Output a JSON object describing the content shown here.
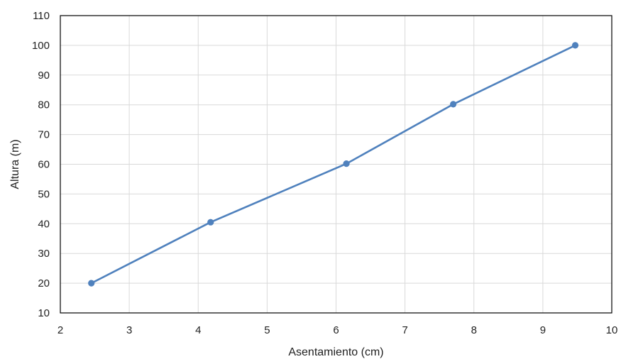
{
  "chart_data": {
    "type": "line",
    "title": "",
    "xlabel": "Asentamiento (cm)",
    "ylabel": "Altura (m)",
    "xlim": [
      2,
      10
    ],
    "ylim": [
      10,
      110
    ],
    "xticks": [
      "2",
      "3",
      "4",
      "5",
      "6",
      "7",
      "8",
      "9",
      "10"
    ],
    "yticks": [
      "10",
      "20",
      "30",
      "40",
      "50",
      "60",
      "70",
      "80",
      "90",
      "100",
      "110"
    ],
    "grid": true,
    "legend": "none",
    "series": [
      {
        "color": "#4f81bd",
        "marker": "circle",
        "x": [
          2.45,
          4.18,
          6.15,
          7.7,
          9.47
        ],
        "y": [
          20,
          40.5,
          60.2,
          80.2,
          100
        ]
      }
    ]
  }
}
